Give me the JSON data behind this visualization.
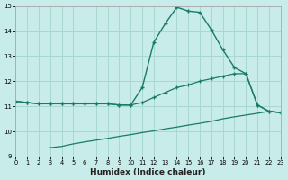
{
  "xlabel": "Humidex (Indice chaleur)",
  "bg_color": "#c8ecea",
  "grid_color": "#a8d8d0",
  "line_color": "#1a7a6a",
  "xlim": [
    0,
    23
  ],
  "ylim": [
    9,
    15
  ],
  "xticks": [
    0,
    1,
    2,
    3,
    4,
    5,
    6,
    7,
    8,
    9,
    10,
    11,
    12,
    13,
    14,
    15,
    16,
    17,
    18,
    19,
    20,
    21,
    22,
    23
  ],
  "yticks": [
    9,
    10,
    11,
    12,
    13,
    14,
    15
  ],
  "curve1_x": [
    0,
    1,
    2,
    3,
    4,
    5,
    6,
    7,
    8,
    9,
    10,
    11,
    12,
    13,
    14,
    15,
    16,
    17,
    18,
    19,
    20,
    21,
    22,
    23
  ],
  "curve1_y": [
    11.2,
    11.15,
    11.1,
    11.1,
    11.1,
    11.1,
    11.1,
    11.1,
    11.1,
    11.05,
    11.05,
    11.75,
    13.55,
    14.3,
    14.95,
    14.8,
    14.75,
    14.05,
    13.25,
    12.55,
    12.3,
    11.05,
    10.8,
    10.75
  ],
  "curve2_x": [
    0,
    1,
    2,
    3,
    4,
    5,
    6,
    7,
    8,
    9,
    10,
    11,
    12,
    13,
    14,
    15,
    16,
    17,
    18,
    19,
    20,
    21,
    22,
    23
  ],
  "curve2_y": [
    11.2,
    11.15,
    11.1,
    11.1,
    11.1,
    11.1,
    11.1,
    11.1,
    11.1,
    11.05,
    11.05,
    11.15,
    11.35,
    11.55,
    11.75,
    11.85,
    12.0,
    12.1,
    12.2,
    12.3,
    12.3,
    11.05,
    10.8,
    10.75
  ],
  "line3_x": [
    3,
    4,
    5,
    6,
    7,
    8,
    9,
    10,
    11,
    12,
    13,
    14,
    15,
    16,
    17,
    18,
    19,
    20,
    21,
    22,
    23
  ],
  "line3_y": [
    9.35,
    9.4,
    9.5,
    9.58,
    9.65,
    9.72,
    9.8,
    9.87,
    9.95,
    10.02,
    10.1,
    10.17,
    10.25,
    10.32,
    10.4,
    10.5,
    10.58,
    10.65,
    10.72,
    10.8,
    10.75
  ]
}
